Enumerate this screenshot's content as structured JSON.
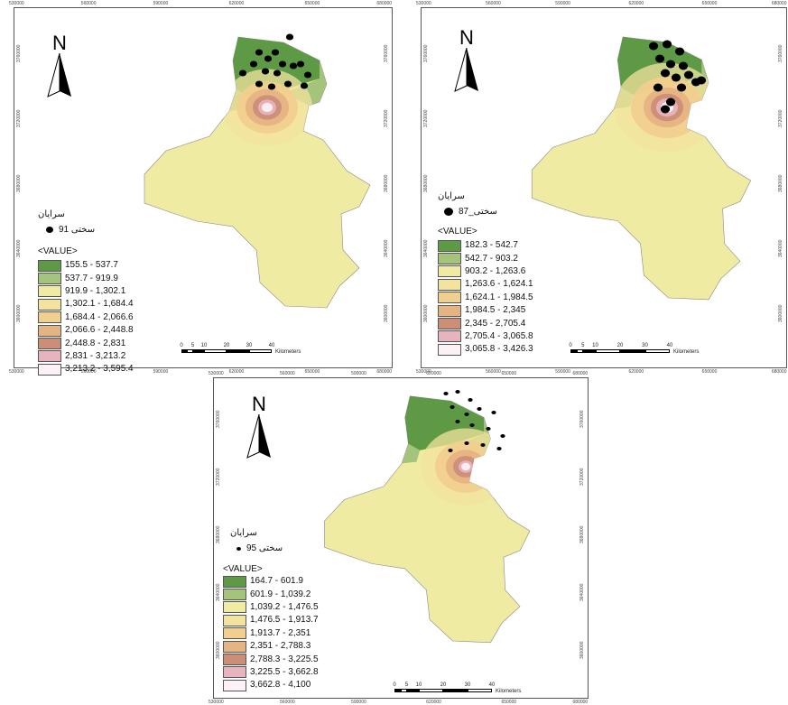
{
  "colors": {
    "c1": "#5e9a45",
    "c2": "#a3c47a",
    "c3": "#f0eba2",
    "c4": "#f3e39f",
    "c5": "#f1cf8e",
    "c6": "#e6b383",
    "c7": "#cc8e77",
    "c8": "#e7b3bd",
    "c9": "#fbf1f6",
    "boundary": "#888888",
    "point": "#000000"
  },
  "icons": {
    "north": "north-arrow-icon",
    "point": "point-symbol-icon"
  },
  "panels": [
    {
      "north_label": "N",
      "layer_title": "سرایان",
      "point_label": "سختی 91",
      "value_header": "<VALUE>",
      "legend": [
        "155.5 - 537.7",
        "537.7 - 919.9",
        "919.9 - 1,302.1",
        "1,302.1 - 1,684.4",
        "1,684.4 - 2,066.6",
        "2,066.6 - 2,448.8",
        "2,448.8 - 2,831",
        "2,831 - 3,213.2",
        "3,213.2 - 3,595.4"
      ],
      "scale": {
        "ticks": [
          "0",
          "5",
          "10",
          "20",
          "30",
          "40"
        ],
        "unit": "Kilometers"
      },
      "top_ticks": [
        "530000",
        "560000",
        "590000",
        "620000",
        "650000",
        "680000"
      ],
      "bottom_ticks": [
        "530000",
        "560000",
        "590000",
        "620000",
        "650000",
        "680000"
      ],
      "left_ticks": [
        "3760000",
        "3720000",
        "3680000",
        "3640000",
        "3600000"
      ],
      "right_ticks": [
        "3760000",
        "3720000",
        "3680000",
        "3640000",
        "3600000"
      ]
    },
    {
      "north_label": "N",
      "layer_title": "سرایان",
      "point_label": "سختی_87",
      "value_header": "<VALUE>",
      "legend": [
        "182.3 - 542.7",
        "542.7 - 903.2",
        "903.2 - 1,263.6",
        "1,263.6 - 1,624.1",
        "1,624.1 - 1,984.5",
        "1,984.5 - 2,345",
        "2,345 - 2,705.4",
        "2,705.4 - 3,065.8",
        "3,065.8 - 3,426.3"
      ],
      "scale": {
        "ticks": [
          "0",
          "5",
          "10",
          "20",
          "30",
          "40"
        ],
        "unit": "Kilometers"
      },
      "top_ticks": [
        "530000",
        "560000",
        "590000",
        "620000",
        "650000",
        "680000"
      ],
      "bottom_ticks": [
        "530000",
        "560000",
        "590000",
        "620000",
        "650000",
        "680000"
      ],
      "left_ticks": [
        "3760000",
        "3720000",
        "3680000",
        "3640000",
        "3600000"
      ],
      "right_ticks": [
        "3760000",
        "3720000",
        "3680000",
        "3640000",
        "3600000"
      ]
    },
    {
      "north_label": "N",
      "layer_title": "سرایان",
      "point_label": "سختی 95",
      "value_header": "<VALUE>",
      "legend": [
        "164.7 - 601.9",
        "601.9 - 1,039.2",
        "1,039.2 - 1,476.5",
        "1,476.5 - 1,913.7",
        "1,913.7 - 2,351",
        "2,351 - 2,788.3",
        "2,788.3 - 3,225.5",
        "3,225.5 - 3,662.8",
        "3,662.8 - 4,100"
      ],
      "scale": {
        "ticks": [
          "0",
          "5",
          "10",
          "20",
          "30",
          "40"
        ],
        "unit": "Kilometers"
      },
      "top_ticks": [
        "530000",
        "560000",
        "590000",
        "620000",
        "650000",
        "680000"
      ],
      "bottom_ticks": [
        "530000",
        "560000",
        "590000",
        "620000",
        "650000",
        "680000"
      ],
      "left_ticks": [
        "3760000",
        "3720000",
        "3680000",
        "3640000",
        "3600000"
      ],
      "right_ticks": [
        "3760000",
        "3720000",
        "3680000",
        "3640000",
        "3600000"
      ]
    }
  ]
}
